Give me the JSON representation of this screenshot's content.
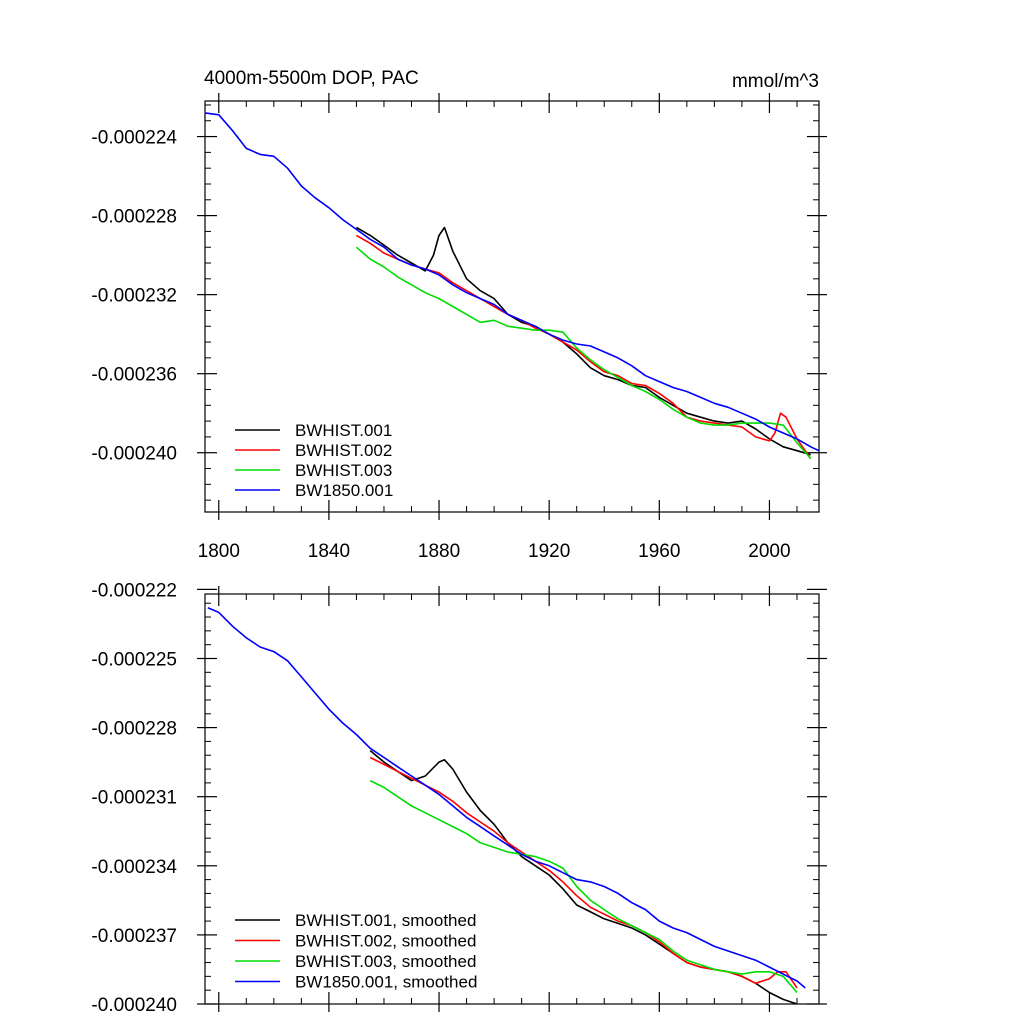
{
  "colors": {
    "BWHIST.001": "#000000",
    "BWHIST.002": "#ff0000",
    "BWHIST.003": "#00dd00",
    "BW1850.001": "#0000ff"
  },
  "chart_data": [
    {
      "type": "line",
      "title": "4000m-5500m DOP, PAC",
      "units": "mmol/m^3",
      "xlim": [
        1795,
        2018
      ],
      "ylim": [
        -0.000243,
        -0.0002222
      ],
      "xticks": [
        1800,
        1840,
        1880,
        1920,
        1960,
        2000
      ],
      "xtick_labels": [
        "1800",
        "1840",
        "1880",
        "1920",
        "1960",
        "2000"
      ],
      "yticks": [
        -0.000224,
        -0.000228,
        -0.000232,
        -0.000236,
        -0.00024
      ],
      "ytick_labels": [
        "-0.000224",
        "-0.000228",
        "-0.000232",
        "-0.000236",
        "-0.000240"
      ],
      "grid": false,
      "legend_position": "bottom-left",
      "series": [
        {
          "name": "BWHIST.001",
          "x": [
            1850,
            1855,
            1860,
            1865,
            1870,
            1875,
            1878,
            1880,
            1882,
            1885,
            1890,
            1895,
            1900,
            1905,
            1910,
            1915,
            1920,
            1925,
            1930,
            1935,
            1940,
            1945,
            1950,
            1955,
            1960,
            1965,
            1970,
            1975,
            1980,
            1985,
            1990,
            1995,
            2000,
            2005,
            2010,
            2015
          ],
          "values": [
            -0.0002286,
            -0.000229,
            -0.0002295,
            -0.00023,
            -0.0002304,
            -0.0002308,
            -0.00023,
            -0.000229,
            -0.0002286,
            -0.0002298,
            -0.0002312,
            -0.0002318,
            -0.0002322,
            -0.000233,
            -0.0002334,
            -0.0002336,
            -0.000234,
            -0.0002344,
            -0.000235,
            -0.0002357,
            -0.0002361,
            -0.0002363,
            -0.0002366,
            -0.0002367,
            -0.0002372,
            -0.0002376,
            -0.000238,
            -0.0002382,
            -0.0002384,
            -0.0002385,
            -0.0002384,
            -0.0002388,
            -0.0002393,
            -0.0002397,
            -0.0002399,
            -0.0002401
          ]
        },
        {
          "name": "BWHIST.002",
          "x": [
            1850,
            1855,
            1860,
            1865,
            1870,
            1875,
            1880,
            1885,
            1890,
            1895,
            1900,
            1905,
            1910,
            1915,
            1920,
            1925,
            1930,
            1935,
            1940,
            1945,
            1950,
            1955,
            1960,
            1965,
            1970,
            1975,
            1980,
            1985,
            1990,
            1995,
            2000,
            2002,
            2004,
            2006,
            2010,
            2015
          ],
          "values": [
            -0.000229,
            -0.0002294,
            -0.0002299,
            -0.0002302,
            -0.0002305,
            -0.0002307,
            -0.0002309,
            -0.0002314,
            -0.0002318,
            -0.0002322,
            -0.0002326,
            -0.000233,
            -0.0002333,
            -0.0002337,
            -0.000234,
            -0.0002344,
            -0.0002348,
            -0.0002354,
            -0.0002359,
            -0.0002361,
            -0.0002365,
            -0.0002366,
            -0.000237,
            -0.0002375,
            -0.0002382,
            -0.0002384,
            -0.0002385,
            -0.0002386,
            -0.0002387,
            -0.0002392,
            -0.0002394,
            -0.000239,
            -0.000238,
            -0.0002382,
            -0.0002393,
            -0.0002403
          ]
        },
        {
          "name": "BWHIST.003",
          "x": [
            1850,
            1855,
            1860,
            1865,
            1870,
            1875,
            1880,
            1885,
            1890,
            1895,
            1900,
            1905,
            1910,
            1915,
            1920,
            1925,
            1930,
            1935,
            1940,
            1945,
            1950,
            1955,
            1960,
            1965,
            1970,
            1975,
            1980,
            1985,
            1990,
            1995,
            2000,
            2005,
            2010,
            2015
          ],
          "values": [
            -0.0002296,
            -0.0002302,
            -0.0002306,
            -0.0002311,
            -0.0002315,
            -0.0002319,
            -0.0002322,
            -0.0002326,
            -0.000233,
            -0.0002334,
            -0.0002333,
            -0.0002336,
            -0.0002337,
            -0.0002338,
            -0.0002338,
            -0.0002339,
            -0.0002347,
            -0.0002353,
            -0.0002358,
            -0.0002362,
            -0.0002366,
            -0.0002369,
            -0.0002373,
            -0.0002378,
            -0.0002382,
            -0.0002385,
            -0.0002386,
            -0.0002386,
            -0.0002385,
            -0.0002385,
            -0.0002385,
            -0.0002386,
            -0.0002395,
            -0.0002403
          ]
        },
        {
          "name": "BW1850.001",
          "x": [
            1795,
            1800,
            1805,
            1810,
            1815,
            1820,
            1825,
            1830,
            1835,
            1840,
            1845,
            1850,
            1855,
            1860,
            1865,
            1870,
            1875,
            1880,
            1885,
            1890,
            1895,
            1900,
            1905,
            1910,
            1915,
            1920,
            1925,
            1930,
            1935,
            1940,
            1945,
            1950,
            1955,
            1960,
            1965,
            1970,
            1975,
            1980,
            1985,
            1990,
            1995,
            2000,
            2005,
            2010,
            2015,
            2018
          ],
          "values": [
            -0.0002228,
            -0.0002229,
            -0.0002237,
            -0.0002246,
            -0.0002249,
            -0.000225,
            -0.0002256,
            -0.0002265,
            -0.0002271,
            -0.0002276,
            -0.0002282,
            -0.0002287,
            -0.0002292,
            -0.0002296,
            -0.0002302,
            -0.0002305,
            -0.0002307,
            -0.000231,
            -0.0002315,
            -0.0002319,
            -0.0002322,
            -0.0002325,
            -0.000233,
            -0.0002333,
            -0.0002336,
            -0.000234,
            -0.0002343,
            -0.0002345,
            -0.0002346,
            -0.0002349,
            -0.0002352,
            -0.0002356,
            -0.0002361,
            -0.0002364,
            -0.0002367,
            -0.0002369,
            -0.0002372,
            -0.0002375,
            -0.0002377,
            -0.000238,
            -0.0002383,
            -0.0002387,
            -0.000239,
            -0.0002393,
            -0.0002397,
            -0.0002399
          ]
        }
      ]
    },
    {
      "type": "line",
      "title": "",
      "xlim": [
        1795,
        2018
      ],
      "ylim": [
        -0.00024,
        -0.0002222
      ],
      "xticks": [
        1800,
        1840,
        1880,
        1920,
        1960,
        2000
      ],
      "xtick_labels": [],
      "yticks": [
        -0.000222,
        -0.000225,
        -0.000228,
        -0.000231,
        -0.000234,
        -0.000237,
        -0.00024
      ],
      "ytick_labels": [
        "-0.000222",
        "-0.000225",
        "-0.000228",
        "-0.000231",
        "-0.000234",
        "-0.000237",
        "-0.000240"
      ],
      "grid": false,
      "legend_position": "bottom-left",
      "series": [
        {
          "name": "BWHIST.001, smoothed",
          "x": [
            1855,
            1860,
            1865,
            1870,
            1875,
            1880,
            1882,
            1885,
            1890,
            1895,
            1900,
            1905,
            1910,
            1915,
            1920,
            1925,
            1930,
            1935,
            1940,
            1945,
            1950,
            1955,
            1960,
            1965,
            1970,
            1975,
            1980,
            1985,
            1990,
            1995,
            2000,
            2005,
            2010
          ],
          "values": [
            -0.000229,
            -0.0002295,
            -0.0002299,
            -0.0002303,
            -0.0002301,
            -0.0002295,
            -0.0002294,
            -0.0002298,
            -0.0002308,
            -0.0002316,
            -0.0002322,
            -0.000233,
            -0.0002336,
            -0.000234,
            -0.0002344,
            -0.000235,
            -0.0002357,
            -0.000236,
            -0.0002363,
            -0.0002365,
            -0.0002367,
            -0.000237,
            -0.0002374,
            -0.0002378,
            -0.0002382,
            -0.0002384,
            -0.0002385,
            -0.0002386,
            -0.0002388,
            -0.0002391,
            -0.0002395,
            -0.0002398,
            -0.00024
          ]
        },
        {
          "name": "BWHIST.002, smoothed",
          "x": [
            1855,
            1860,
            1865,
            1870,
            1875,
            1880,
            1885,
            1890,
            1895,
            1900,
            1905,
            1910,
            1915,
            1920,
            1925,
            1930,
            1935,
            1940,
            1945,
            1950,
            1955,
            1960,
            1965,
            1970,
            1975,
            1980,
            1985,
            1990,
            1995,
            2000,
            2003,
            2006,
            2010
          ],
          "values": [
            -0.0002293,
            -0.0002296,
            -0.0002299,
            -0.0002302,
            -0.0002305,
            -0.0002308,
            -0.0002312,
            -0.0002317,
            -0.0002321,
            -0.0002325,
            -0.000233,
            -0.0002334,
            -0.0002338,
            -0.0002342,
            -0.0002347,
            -0.0002353,
            -0.0002358,
            -0.0002361,
            -0.0002364,
            -0.0002366,
            -0.0002369,
            -0.0002373,
            -0.0002378,
            -0.0002382,
            -0.0002384,
            -0.0002385,
            -0.0002386,
            -0.0002388,
            -0.0002391,
            -0.0002389,
            -0.0002386,
            -0.0002386,
            -0.0002393
          ]
        },
        {
          "name": "BWHIST.003, smoothed",
          "x": [
            1855,
            1860,
            1865,
            1870,
            1875,
            1880,
            1885,
            1890,
            1895,
            1900,
            1905,
            1910,
            1915,
            1920,
            1925,
            1930,
            1935,
            1940,
            1945,
            1950,
            1955,
            1960,
            1965,
            1970,
            1975,
            1980,
            1985,
            1990,
            1995,
            2000,
            2005,
            2010
          ],
          "values": [
            -0.0002303,
            -0.0002306,
            -0.000231,
            -0.0002314,
            -0.0002317,
            -0.000232,
            -0.0002323,
            -0.0002326,
            -0.000233,
            -0.0002332,
            -0.0002334,
            -0.0002335,
            -0.0002336,
            -0.0002338,
            -0.0002341,
            -0.0002349,
            -0.0002355,
            -0.0002359,
            -0.0002363,
            -0.0002366,
            -0.0002369,
            -0.0002372,
            -0.0002377,
            -0.0002381,
            -0.0002383,
            -0.0002385,
            -0.0002386,
            -0.0002387,
            -0.0002386,
            -0.0002386,
            -0.0002388,
            -0.0002395
          ]
        },
        {
          "name": "BW1850.001, smoothed",
          "x": [
            1796,
            1800,
            1805,
            1810,
            1815,
            1820,
            1825,
            1830,
            1835,
            1840,
            1845,
            1850,
            1855,
            1860,
            1865,
            1870,
            1875,
            1880,
            1885,
            1890,
            1895,
            1900,
            1905,
            1910,
            1915,
            1920,
            1925,
            1930,
            1935,
            1940,
            1945,
            1950,
            1955,
            1960,
            1965,
            1970,
            1975,
            1980,
            1985,
            1990,
            1995,
            2000,
            2005,
            2010,
            2013
          ],
          "values": [
            -0.0002228,
            -0.000223,
            -0.0002236,
            -0.0002241,
            -0.0002245,
            -0.0002247,
            -0.0002251,
            -0.0002258,
            -0.0002265,
            -0.0002272,
            -0.0002278,
            -0.0002283,
            -0.0002289,
            -0.0002293,
            -0.0002297,
            -0.0002301,
            -0.0002305,
            -0.0002309,
            -0.0002314,
            -0.0002319,
            -0.0002323,
            -0.0002327,
            -0.0002331,
            -0.0002335,
            -0.0002338,
            -0.000234,
            -0.0002343,
            -0.0002346,
            -0.0002347,
            -0.0002349,
            -0.0002352,
            -0.0002356,
            -0.0002359,
            -0.0002364,
            -0.0002367,
            -0.0002369,
            -0.0002372,
            -0.0002375,
            -0.0002377,
            -0.0002379,
            -0.0002381,
            -0.0002384,
            -0.0002387,
            -0.000239,
            -0.0002393
          ]
        }
      ]
    }
  ]
}
